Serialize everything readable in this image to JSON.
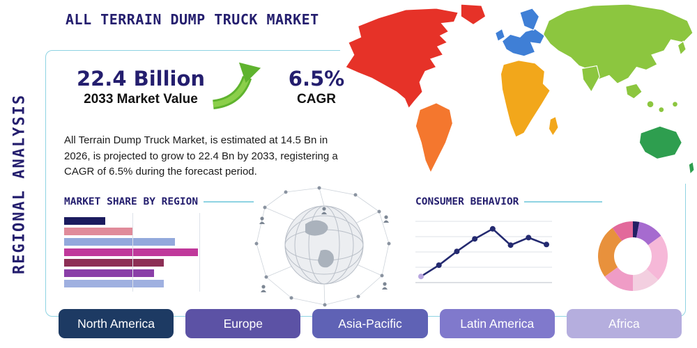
{
  "header": {
    "title": "ALL TERRAIN DUMP TRUCK MARKET",
    "side_label": "REGIONAL ANALYSIS"
  },
  "stats": {
    "market_value": "22.4 Billion",
    "market_value_caption": "2033 Market Value",
    "cagr_value": "6.5%",
    "cagr_caption": "CAGR"
  },
  "description": "All Terrain Dump Truck Market, is estimated at 14.5 Bn in 2026, is projected to grow to 22.4 Bn by 2033, registering a CAGR of 6.5% during the forecast period.",
  "icons": {
    "growth_arrow": "curved-up-right-green-arrow",
    "globe": "connected-globe-network",
    "map": "world-map-colored-continents"
  },
  "colors": {
    "navy": "#241e6e",
    "accent_line": "#8ed3e2",
    "arrow_green": "#5fb32e"
  },
  "regions": [
    {
      "label": "North America",
      "color": "#1d3a63"
    },
    {
      "label": "Europe",
      "color": "#5c52a5"
    },
    {
      "label": "Asia-Pacific",
      "color": "#5f62b5"
    },
    {
      "label": "Latin America",
      "color": "#8079cc"
    },
    {
      "label": "Africa",
      "color": "#b5aede"
    }
  ],
  "chart_data": [
    {
      "type": "bar",
      "title": "MARKET SHARE BY REGION",
      "orientation": "horizontal",
      "values": [
        30,
        50,
        81,
        98,
        73,
        66,
        73
      ],
      "colors": [
        "#1b1b5e",
        "#e08b9a",
        "#93a9dc",
        "#c0399b",
        "#8d2f55",
        "#8a3fa8",
        "#9fb0e0"
      ],
      "xlim": [
        0,
        100
      ],
      "grid": true
    },
    {
      "type": "line",
      "title": "CONSUMER BEHAVIOR",
      "x": [
        1,
        2,
        3,
        4,
        5,
        6,
        7,
        8
      ],
      "values": [
        12,
        30,
        52,
        72,
        88,
        62,
        74,
        63
      ],
      "line_color": "#242a70",
      "marker_color": "#242a70",
      "first_marker_color": "#b9a7e0",
      "grid": "horizontal",
      "ylim": [
        0,
        100
      ]
    },
    {
      "type": "pie",
      "title": "Regional mix donut",
      "donut": true,
      "slices": [
        {
          "value": 3,
          "color": "#232064"
        },
        {
          "value": 12,
          "color": "#a66bcf"
        },
        {
          "value": 22,
          "color": "#f6b8d8"
        },
        {
          "value": 13,
          "color": "#f3cfe0"
        },
        {
          "value": 15,
          "color": "#ef9cc6"
        },
        {
          "value": 25,
          "color": "#e8913c"
        },
        {
          "value": 10,
          "color": "#e2699b"
        }
      ]
    }
  ],
  "map": {
    "region_colors": {
      "north_america": "#e63228",
      "south_america": "#f4772e",
      "europe": "#3f7fd6",
      "africa": "#f2a71b",
      "asia": "#8cc63f",
      "australia": "#2e9e4f"
    }
  }
}
